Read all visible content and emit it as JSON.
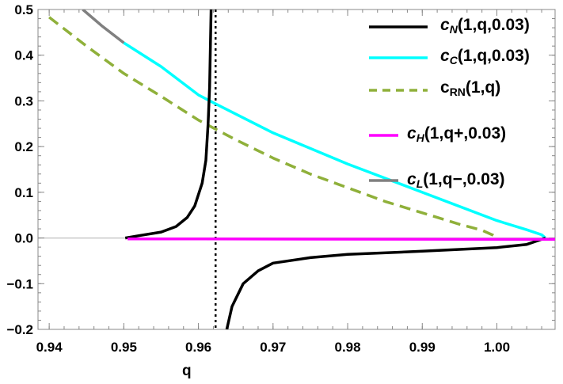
{
  "chart_data": {
    "type": "line",
    "xlabel": "q",
    "ylabel": "",
    "xlim": [
      0.9385,
      1.0078
    ],
    "ylim": [
      -0.2,
      0.5
    ],
    "xticks": [
      "0.94",
      "0.95",
      "0.96",
      "0.97",
      "0.98",
      "0.99",
      "1.00"
    ],
    "yticks": [
      "0.5",
      "0.4",
      "0.3",
      "0.2",
      "0.1",
      "0.0",
      "-0.1",
      "-0.2"
    ],
    "grid": false,
    "legend_position": "top-right",
    "asymptote_q": 0.9623,
    "series": [
      {
        "name": "cN(1,q,0.03)",
        "label": {
          "c": "c",
          "sub": "N",
          "args": "(1,q,0.03)"
        },
        "color": "#000000",
        "dash": "solid",
        "segments": [
          {
            "x": [
              0.9502,
              0.952,
              0.955,
              0.957,
              0.9585,
              0.9595,
              0.9605,
              0.961,
              0.9613,
              0.9615,
              0.9617
            ],
            "y": [
              0,
              0.005,
              0.013,
              0.025,
              0.045,
              0.07,
              0.12,
              0.17,
              0.25,
              0.33,
              0.5
            ]
          },
          {
            "x": [
              0.9638,
              0.9645,
              0.966,
              0.968,
              0.97,
              0.975,
              0.98,
              0.99,
              1.0,
              1.004,
              1.0065
            ],
            "y": [
              -0.2,
              -0.15,
              -0.1,
              -0.072,
              -0.055,
              -0.043,
              -0.036,
              -0.029,
              -0.021,
              -0.014,
              0
            ]
          }
        ]
      },
      {
        "name": "cC(1,q,0.03)",
        "label": {
          "c": "c",
          "sub": "C",
          "args": "(1,q,0.03)"
        },
        "color": "#00ffff",
        "dash": "solid",
        "segments": [
          {
            "x": [
              0.95,
              0.955,
              0.96,
              0.962,
              0.97,
              0.98,
              0.99,
              1.0,
              1.004,
              1.006,
              1.0065
            ],
            "y": [
              0.427,
              0.375,
              0.313,
              0.296,
              0.23,
              0.162,
              0.1,
              0.038,
              0.018,
              0.007,
              0
            ]
          }
        ]
      },
      {
        "name": "cRN(1,q)",
        "label": {
          "c": "c",
          "sub": "RN",
          "args": "(1,q)"
        },
        "color": "#8fb03a",
        "dash": "dashed",
        "segments": [
          {
            "x": [
              0.94,
              0.945,
              0.95,
              0.955,
              0.96,
              0.965,
              0.97,
              0.975,
              0.98,
              0.985,
              0.99,
              0.995,
              0.998,
              0.9995,
              1.0
            ],
            "y": [
              0.483,
              0.42,
              0.36,
              0.31,
              0.258,
              0.215,
              0.175,
              0.14,
              0.11,
              0.08,
              0.055,
              0.03,
              0.017,
              0.006,
              0
            ]
          }
        ]
      },
      {
        "name": "cH(1,q+,0.03)",
        "label": {
          "c": "c",
          "sub": "H",
          "args": "(1,q+,0.03)"
        },
        "color": "#ff00ff",
        "dash": "solid",
        "segments": [
          {
            "x": [
              0.9505,
              1.0078
            ],
            "y": [
              -0.002,
              -0.003
            ]
          }
        ]
      },
      {
        "name": "cL(1,q−,0.03)",
        "label": {
          "c": "c",
          "sub": "L",
          "args": "(1,q−,0.03)"
        },
        "color": "#808080",
        "dash": "solid",
        "segments": [
          {
            "x": [
              0.9445,
              0.947,
              0.95
            ],
            "y": [
              0.5,
              0.465,
              0.427
            ]
          }
        ]
      }
    ]
  }
}
